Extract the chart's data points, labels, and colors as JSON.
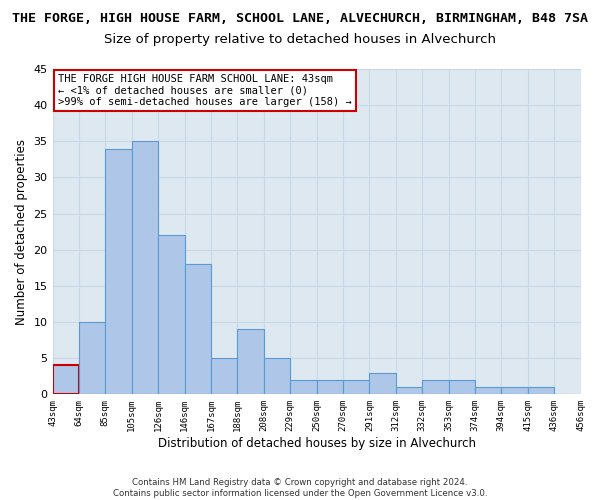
{
  "title": "THE FORGE, HIGH HOUSE FARM, SCHOOL LANE, ALVECHURCH, BIRMINGHAM, B48 7SA",
  "subtitle": "Size of property relative to detached houses in Alvechurch",
  "xlabel": "Distribution of detached houses by size in Alvechurch",
  "ylabel": "Number of detached properties",
  "bar_values": [
    4,
    10,
    34,
    35,
    22,
    18,
    5,
    9,
    5,
    2,
    2,
    2,
    3,
    1,
    2,
    2,
    1,
    1,
    1,
    0
  ],
  "bar_labels": [
    "43sqm",
    "64sqm",
    "85sqm",
    "105sqm",
    "126sqm",
    "146sqm",
    "167sqm",
    "188sqm",
    "208sqm",
    "229sqm",
    "250sqm",
    "270sqm",
    "291sqm",
    "312sqm",
    "332sqm",
    "353sqm",
    "374sqm",
    "394sqm",
    "415sqm",
    "436sqm",
    "456sqm"
  ],
  "bar_color": "#aec6e8",
  "bar_edge_color": "#5b9bd5",
  "highlight_bar_index": 0,
  "highlight_color": "#cc0000",
  "ylim": [
    0,
    45
  ],
  "yticks": [
    0,
    5,
    10,
    15,
    20,
    25,
    30,
    35,
    40,
    45
  ],
  "annotation_box_text": "THE FORGE HIGH HOUSE FARM SCHOOL LANE: 43sqm\n← <1% of detached houses are smaller (0)\n>99% of semi-detached houses are larger (158) →",
  "annotation_box_color": "#cc0000",
  "annotation_fill_color": "#ffffff",
  "footnote": "Contains HM Land Registry data © Crown copyright and database right 2024.\nContains public sector information licensed under the Open Government Licence v3.0.",
  "grid_color": "#c8d8e8",
  "background_color": "#dde8f0",
  "title_fontsize": 9.5,
  "subtitle_fontsize": 9.5,
  "xlabel_fontsize": 8.5,
  "ylabel_fontsize": 8.5
}
